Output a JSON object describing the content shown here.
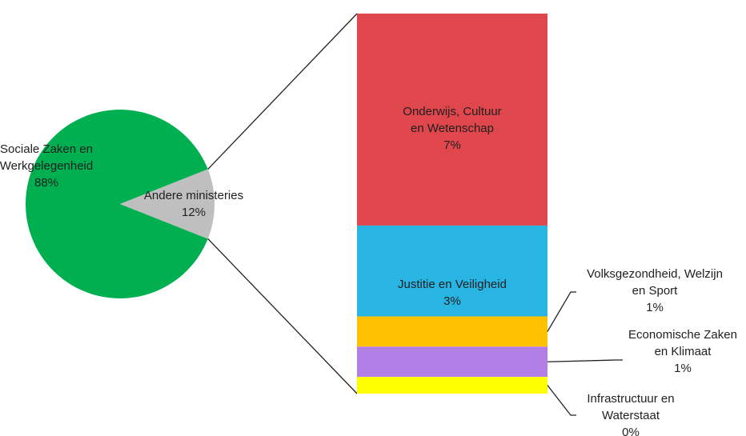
{
  "chart_data": {
    "type": "bar-of-pie",
    "pie": {
      "slices": [
        {
          "label": "Sociale Zaken en Werkgelegenheid",
          "value": 88,
          "value_label": "88%",
          "color": "#00b050"
        },
        {
          "label": "Andere ministeries",
          "value": 12,
          "value_label": "12%",
          "color": "#bfbfbf"
        }
      ]
    },
    "bar": {
      "segments": [
        {
          "label": "Onderwijs, Cultuur en Wetenschap",
          "value": 7,
          "value_label": "7%",
          "color": "#e0474c"
        },
        {
          "label": "Justitie en Veiligheid",
          "value": 3,
          "value_label": "3%",
          "color": "#29b5e4"
        },
        {
          "label": "Volksgezondheid, Welzijn en Sport",
          "value": 1,
          "value_label": "1%",
          "color": "#ffc000"
        },
        {
          "label": "Economische Zaken en Klimaat",
          "value": 1,
          "value_label": "1%",
          "color": "#b27fe6"
        },
        {
          "label": "Infrastructuur en Waterstaat",
          "value": 0,
          "value_label": "0%",
          "color": "#ffff00"
        }
      ]
    }
  }
}
